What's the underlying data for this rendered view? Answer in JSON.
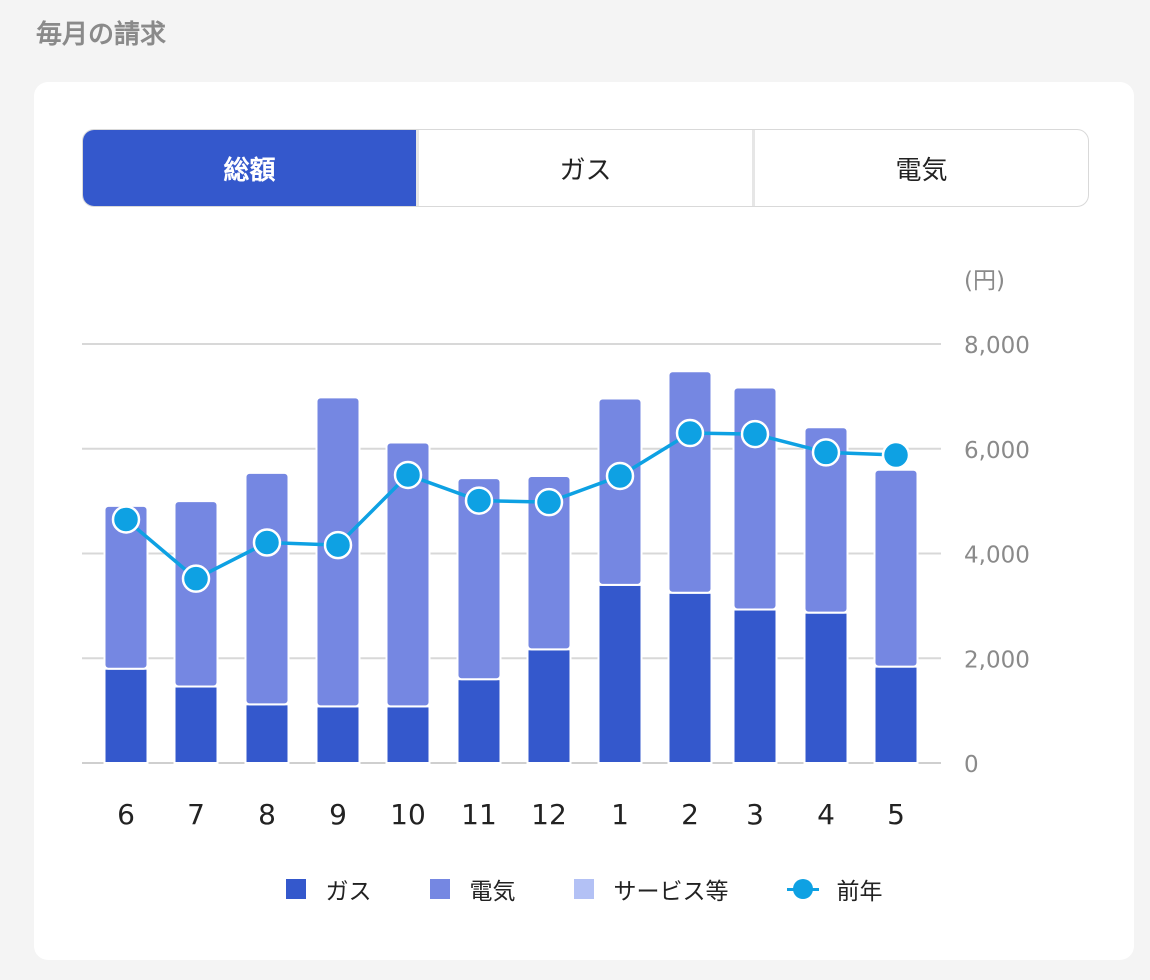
{
  "page": {
    "title": "毎月の請求"
  },
  "tabs": [
    {
      "label": "総額",
      "active": true
    },
    {
      "label": "ガス",
      "active": false
    },
    {
      "label": "電気",
      "active": false
    }
  ],
  "chart_data": {
    "type": "bar",
    "stacked": true,
    "unit_label": "(円)",
    "categories": [
      "6",
      "7",
      "8",
      "9",
      "10",
      "11",
      "12",
      "1",
      "2",
      "3",
      "4",
      "5"
    ],
    "ylim": [
      0,
      8000
    ],
    "yticks": [
      0,
      2000,
      4000,
      6000,
      8000
    ],
    "ytick_labels": [
      "0",
      "2,000",
      "4,000",
      "6,000",
      "8,000"
    ],
    "grid": true,
    "legend_position": "bottom",
    "series": [
      {
        "name": "ガス",
        "kind": "bar",
        "color": "#3458cc",
        "values": [
          1800,
          1460,
          1120,
          1080,
          1080,
          1600,
          2170,
          3400,
          3250,
          2930,
          2870,
          1840
        ]
      },
      {
        "name": "電気",
        "kind": "bar",
        "color": "#7587e2",
        "values": [
          3110,
          3540,
          4420,
          5900,
          5040,
          3840,
          3310,
          3560,
          4230,
          4240,
          3540,
          3760
        ]
      },
      {
        "name": "サービス等",
        "kind": "bar",
        "color": "#b3c1f5",
        "values": [
          0,
          0,
          0,
          0,
          0,
          0,
          0,
          0,
          0,
          0,
          0,
          0
        ]
      },
      {
        "name": "前年",
        "kind": "line",
        "color": "#0ea1e3",
        "values": [
          4650,
          3520,
          4210,
          4160,
          5500,
          5010,
          4980,
          5480,
          6300,
          6280,
          5930,
          5880
        ]
      }
    ]
  }
}
